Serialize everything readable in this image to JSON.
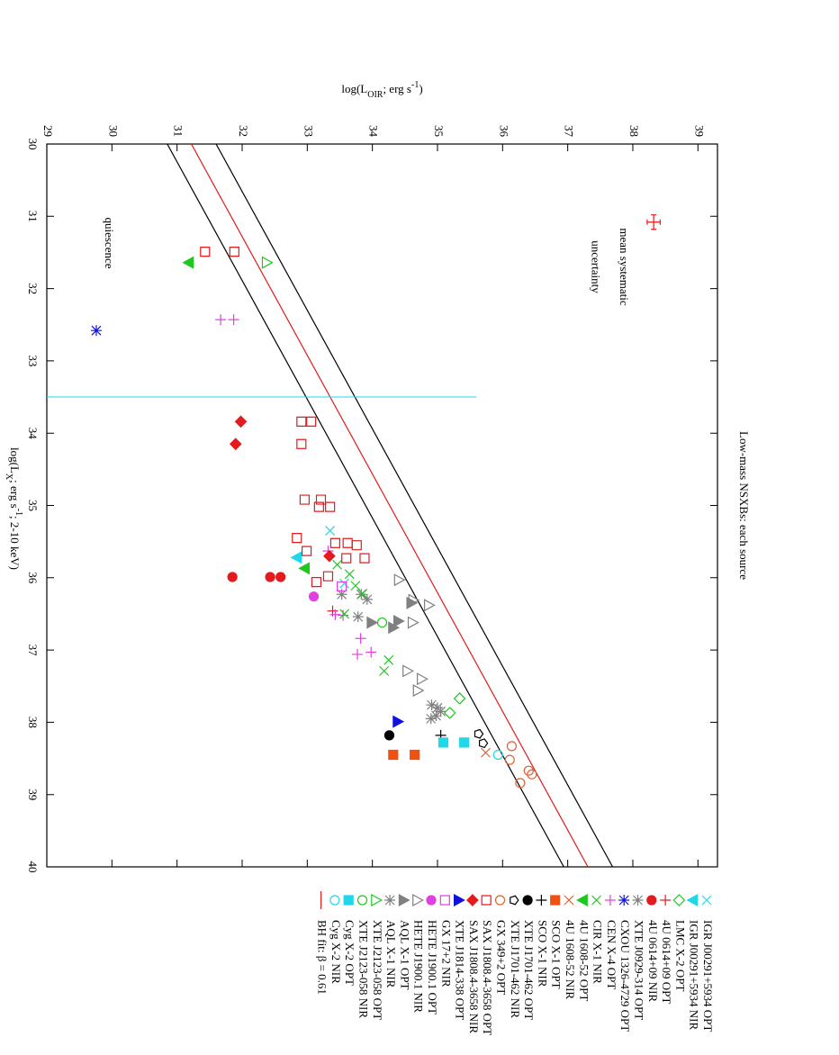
{
  "chart_data": {
    "type": "scatter",
    "title": "Low-mass NSXBs: each source",
    "xlabel": [
      {
        "text": "log(L"
      },
      {
        "text": "X",
        "shift": "sub"
      },
      {
        "text": "; erg s"
      },
      {
        "text": "-1",
        "shift": "super"
      },
      {
        "text": "; 2-10 keV)"
      }
    ],
    "ylabel": [
      {
        "text": "log(L"
      },
      {
        "text": "OIR",
        "shift": "sub"
      },
      {
        "text": "; erg s"
      },
      {
        "text": "-1",
        "shift": "super"
      },
      {
        "text": ")"
      }
    ],
    "xlim": [
      30,
      40
    ],
    "xticks": [
      30,
      31,
      32,
      33,
      34,
      35,
      36,
      37,
      38,
      39,
      40
    ],
    "ylim": [
      29,
      39.3
    ],
    "yticks": [
      29,
      30,
      31,
      32,
      33,
      34,
      35,
      36,
      37,
      38,
      39
    ],
    "annotations": [
      "quiescence",
      "mean systematic",
      "uncertainty"
    ],
    "error_bar": {
      "x": 31.08,
      "y": 38.32,
      "xerr": 0.1,
      "yerr": 0.1,
      "color": "#e41a1c"
    },
    "vline": {
      "x": 33.5,
      "y": [
        29,
        35.6
      ],
      "color": "#20d8e8"
    },
    "series": [
      {
        "name": "IGR J00291+5934  OPT",
        "color": "#20d8e8",
        "marker": "x",
        "x": [
          35.35,
          36.08
        ],
        "values": [
          33.35,
          33.57
        ]
      },
      {
        "name": "IGR J00291+5934  NIR",
        "color": "#20d8e8",
        "marker": "triangle-down",
        "x": [
          35.72
        ],
        "values": [
          32.84
        ]
      },
      {
        "name": "LMC X-2  OPT",
        "color": "#1ec81e",
        "marker": "diamond-open",
        "x": [
          37.67,
          37.87
        ],
        "values": [
          35.34,
          35.19
        ]
      },
      {
        "name": "4U 0614+09  OPT",
        "color": "#e41a1c",
        "marker": "plus",
        "x": [
          36.46
        ],
        "values": [
          33.39
        ]
      },
      {
        "name": "4U 0614+09  NIR",
        "color": "#e41a1c",
        "marker": "circle",
        "x": [
          35.99,
          35.99,
          35.99
        ],
        "values": [
          31.85,
          32.43,
          32.59
        ]
      },
      {
        "name": "XTE J0929-314  OPT",
        "color": "#808080",
        "marker": "star",
        "x": [
          36.23,
          36.23,
          36.54,
          36.3
        ],
        "values": [
          33.53,
          33.83,
          33.78,
          33.92
        ]
      },
      {
        "name": "CXOU 1326-4729  OPT",
        "color": "#1010e0",
        "marker": "star",
        "x": [
          32.58
        ],
        "values": [
          29.76
        ]
      },
      {
        "name": "CEN X-4  OPT",
        "color": "#e040e0",
        "marker": "plus",
        "x": [
          32.43,
          32.43,
          35.63,
          36.51,
          36.84,
          37.06,
          37.03,
          36.52
        ],
        "values": [
          31.67,
          31.87,
          33.32,
          33.43,
          33.82,
          33.77,
          33.98,
          33.55
        ]
      },
      {
        "name": "CIR X-1  NIR",
        "color": "#1ec81e",
        "marker": "x",
        "x": [
          35.82,
          36.11,
          36.5,
          37.14,
          37.29,
          36.22,
          35.95
        ],
        "values": [
          33.46,
          33.74,
          33.57,
          34.25,
          34.18,
          33.85,
          33.65
        ]
      },
      {
        "name": "4U 1608-52  OPT",
        "color": "#1ec81e",
        "marker": "triangle-down",
        "x": [
          31.64,
          35.87
        ],
        "values": [
          31.18,
          32.96
        ]
      },
      {
        "name": "4U 1608-52  NIR",
        "color": "#e06030",
        "marker": "x",
        "x": [
          38.42
        ],
        "values": [
          35.74
        ]
      },
      {
        "name": "SCO X-1  OPT",
        "color": "#f05010",
        "marker": "square",
        "x": [
          38.45,
          38.45
        ],
        "values": [
          34.32,
          34.65
        ]
      },
      {
        "name": "SCO X-1  NIR",
        "color": "#000000",
        "marker": "plus",
        "x": [
          38.18
        ],
        "values": [
          35.05
        ]
      },
      {
        "name": "XTE J1701-462  OPT",
        "color": "#000000",
        "marker": "circle",
        "x": [
          38.18
        ],
        "values": [
          34.26
        ]
      },
      {
        "name": "XTE J1701-462  NIR",
        "color": "#000000",
        "marker": "pentagon-open",
        "x": [
          38.16,
          38.29
        ],
        "values": [
          35.63,
          35.7
        ]
      },
      {
        "name": "GX 349+2  OPT",
        "color": "#e06030",
        "marker": "circle-open",
        "x": [
          38.33,
          38.52,
          38.67,
          38.72,
          38.84
        ],
        "values": [
          36.14,
          36.11,
          36.4,
          36.45,
          36.27
        ]
      },
      {
        "name": "SAX J1808.4-3658 OPT",
        "color": "#e41a1c",
        "marker": "square-open",
        "x": [
          31.49,
          31.49,
          33.84,
          33.84,
          34.15,
          34.92,
          34.92,
          35.02,
          35.02,
          35.45,
          35.52,
          35.52,
          35.63,
          35.55,
          35.73,
          35.98,
          36.06,
          35.73
        ],
        "values": [
          31.43,
          31.88,
          32.91,
          33.06,
          32.91,
          32.96,
          33.21,
          33.18,
          33.35,
          32.84,
          33.43,
          33.62,
          32.99,
          33.76,
          33.88,
          33.32,
          33.14,
          33.6
        ]
      },
      {
        "name": "SAX J1808.4-3658 NIR",
        "color": "#e41a1c",
        "marker": "diamond",
        "x": [
          33.84,
          34.15,
          35.7
        ],
        "values": [
          31.98,
          31.9,
          33.34
        ]
      },
      {
        "name": "XTE J1814-338  OPT",
        "color": "#1010e0",
        "marker": "triangle",
        "x": [
          37.99
        ],
        "values": [
          34.39
        ]
      },
      {
        "name": "GX 17+2  NIR",
        "color": "#e040e0",
        "marker": "square-open",
        "x": [
          36.12
        ],
        "values": [
          33.53
        ]
      },
      {
        "name": "HETE J1900.1 OPT",
        "color": "#e040e0",
        "marker": "circle",
        "x": [
          36.26
        ],
        "values": [
          33.1
        ]
      },
      {
        "name": "HETE J1900.1 NIR",
        "color": "#808080",
        "marker": "triangle-open",
        "x": [
          36.31,
          36.38,
          36.62,
          37.29,
          37.4,
          37.56,
          36.03
        ],
        "values": [
          34.63,
          34.87,
          34.62,
          34.54,
          34.76,
          34.7,
          34.41
        ]
      },
      {
        "name": "AQL X-1  OPT",
        "color": "#808080",
        "marker": "triangle",
        "x": [
          36.62,
          36.69,
          36.6,
          36.35
        ],
        "values": [
          33.99,
          34.32,
          34.4,
          34.6
        ]
      },
      {
        "name": "AQL X-1  NIR",
        "color": "#808080",
        "marker": "star",
        "x": [
          37.76,
          37.91,
          37.85,
          37.8,
          37.95
        ],
        "values": [
          34.91,
          34.98,
          35.05,
          35.0,
          34.9
        ]
      },
      {
        "name": "XTE J2123-058  OPT",
        "color": "#1ec81e",
        "marker": "triangle-open",
        "x": [
          31.64
        ],
        "values": [
          32.38
        ]
      },
      {
        "name": "XTE J2123-058  NIR",
        "color": "#1ec81e",
        "marker": "circle-open",
        "x": [
          36.62
        ],
        "values": [
          34.15
        ]
      },
      {
        "name": "Cyg X-2  OPT",
        "color": "#20d8e8",
        "marker": "square",
        "x": [
          38.28,
          38.28
        ],
        "values": [
          35.09,
          35.41
        ]
      },
      {
        "name": "Cyg X-2  NIR",
        "color": "#20d8e8",
        "marker": "circle-open",
        "x": [
          38.45
        ],
        "values": [
          35.93
        ]
      }
    ],
    "lines": [
      {
        "name": "BH fit: β = 0.61",
        "color": "#e41a1c",
        "x": [
          30,
          40
        ],
        "values": [
          31.22,
          37.31
        ]
      },
      {
        "color": "#000000",
        "x": [
          30,
          40
        ],
        "values": [
          30.85,
          36.94
        ]
      },
      {
        "color": "#000000",
        "x": [
          30,
          40
        ],
        "values": [
          31.6,
          37.69
        ]
      }
    ]
  }
}
